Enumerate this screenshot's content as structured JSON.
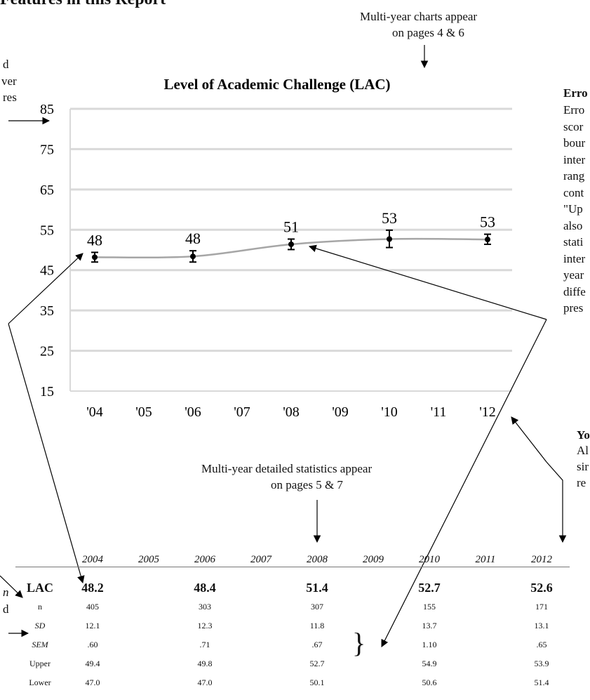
{
  "page_heading": "Features in this Report",
  "notes": {
    "charts_line1": "Multi-year charts appear",
    "charts_line2": "on pages 4 & 6",
    "stats_line1": "Multi-year detailed statistics appear",
    "stats_line2": "on pages 5 & 7",
    "left_partial": [
      "d",
      "ver",
      "res"
    ],
    "left_mid_partial": [
      "n",
      "d"
    ],
    "right_heading_partial": "Erro",
    "right_partial": [
      "Erro",
      "scor",
      "bour",
      "inter",
      "rang",
      "cont",
      "\"Up",
      "also",
      "stati",
      "inter",
      "year",
      "diffe",
      "pres"
    ],
    "right_lower_heading_partial": "Yo",
    "right_lower_partial": [
      "Al",
      "sir",
      "re"
    ]
  },
  "chart_data": {
    "type": "line",
    "title": "Level of Academic Challenge (LAC)",
    "x": [
      "'04",
      "'05",
      "'06",
      "'07",
      "'08",
      "'09",
      "'10",
      "'11",
      "'12"
    ],
    "ylim": [
      15,
      85
    ],
    "yticks": [
      85,
      75,
      65,
      55,
      45,
      35,
      25,
      15
    ],
    "grid": true,
    "series": [
      {
        "points": [
          {
            "x": "'04",
            "y": 48.2,
            "lower": 47.0,
            "upper": 49.4,
            "label": "48"
          },
          {
            "x": "'06",
            "y": 48.4,
            "lower": 47.0,
            "upper": 49.8,
            "label": "48"
          },
          {
            "x": "'08",
            "y": 51.4,
            "lower": 50.1,
            "upper": 52.7,
            "label": "51"
          },
          {
            "x": "'10",
            "y": 52.7,
            "lower": 50.6,
            "upper": 54.9,
            "label": "53"
          },
          {
            "x": "'12",
            "y": 52.6,
            "lower": 51.4,
            "upper": 53.9,
            "label": "53"
          }
        ]
      }
    ],
    "colors": {
      "line": "#a6a6a6",
      "grid": "#d9d9d9",
      "marker": "#000000"
    }
  },
  "table": {
    "years": [
      "2004",
      "2005",
      "2006",
      "2007",
      "2008",
      "2009",
      "2010",
      "2011",
      "2012"
    ],
    "rows": [
      {
        "label": "LAC",
        "values": [
          "48.2",
          "",
          "48.4",
          "",
          "51.4",
          "",
          "52.7",
          "",
          "52.6"
        ],
        "style": "main"
      },
      {
        "label": "n",
        "values": [
          "405",
          "",
          "303",
          "",
          "307",
          "",
          "155",
          "",
          "171"
        ],
        "style": "normal"
      },
      {
        "label": "SD",
        "values": [
          "12.1",
          "",
          "12.3",
          "",
          "11.8",
          "",
          "13.7",
          "",
          "13.1"
        ],
        "style": "italic"
      },
      {
        "label": "SEM",
        "values": [
          ".60",
          "",
          ".71",
          "",
          ".67",
          "",
          "1.10",
          "",
          ".65"
        ],
        "style": "italic"
      },
      {
        "label": "Upper",
        "values": [
          "49.4",
          "",
          "49.8",
          "",
          "52.7",
          "",
          "54.9",
          "",
          "53.9"
        ],
        "style": "normal"
      },
      {
        "label": "Lower",
        "values": [
          "47.0",
          "",
          "47.0",
          "",
          "50.1",
          "",
          "50.6",
          "",
          "51.4"
        ],
        "style": "normal"
      }
    ]
  }
}
